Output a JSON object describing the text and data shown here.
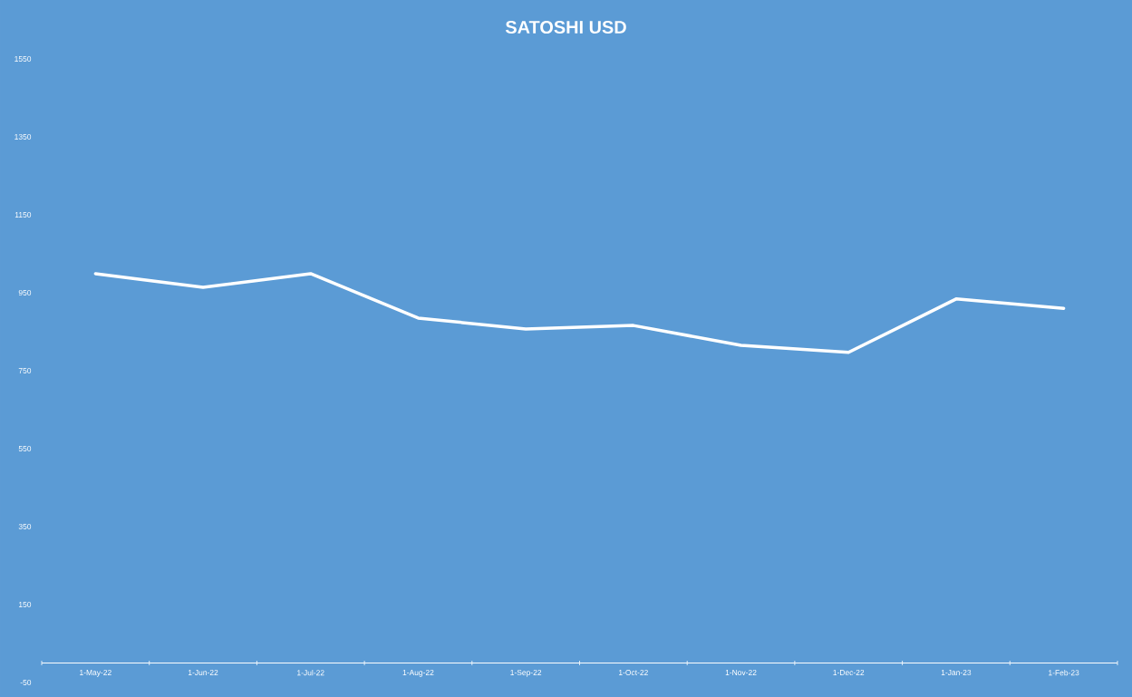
{
  "chart_data": {
    "type": "line",
    "title": "SATOSHI USD",
    "categories": [
      "1-May-22",
      "1-Jun-22",
      "1-Jul-22",
      "1-Aug-22",
      "1-Sep-22",
      "1-Oct-22",
      "1-Nov-22",
      "1-Dec-22",
      "1-Jan-23",
      "1-Feb-23"
    ],
    "series": [
      {
        "color": "#ffffff",
        "values": [
          999,
          964,
          999,
          885,
          857,
          866,
          815,
          797,
          934,
          910
        ]
      }
    ],
    "ylim": [
      -50,
      1550
    ],
    "yticks": [
      -50,
      150,
      350,
      550,
      750,
      950,
      1150,
      1350,
      1550
    ],
    "grid": false,
    "legend": false,
    "marker": "none",
    "line_style": "solid"
  }
}
